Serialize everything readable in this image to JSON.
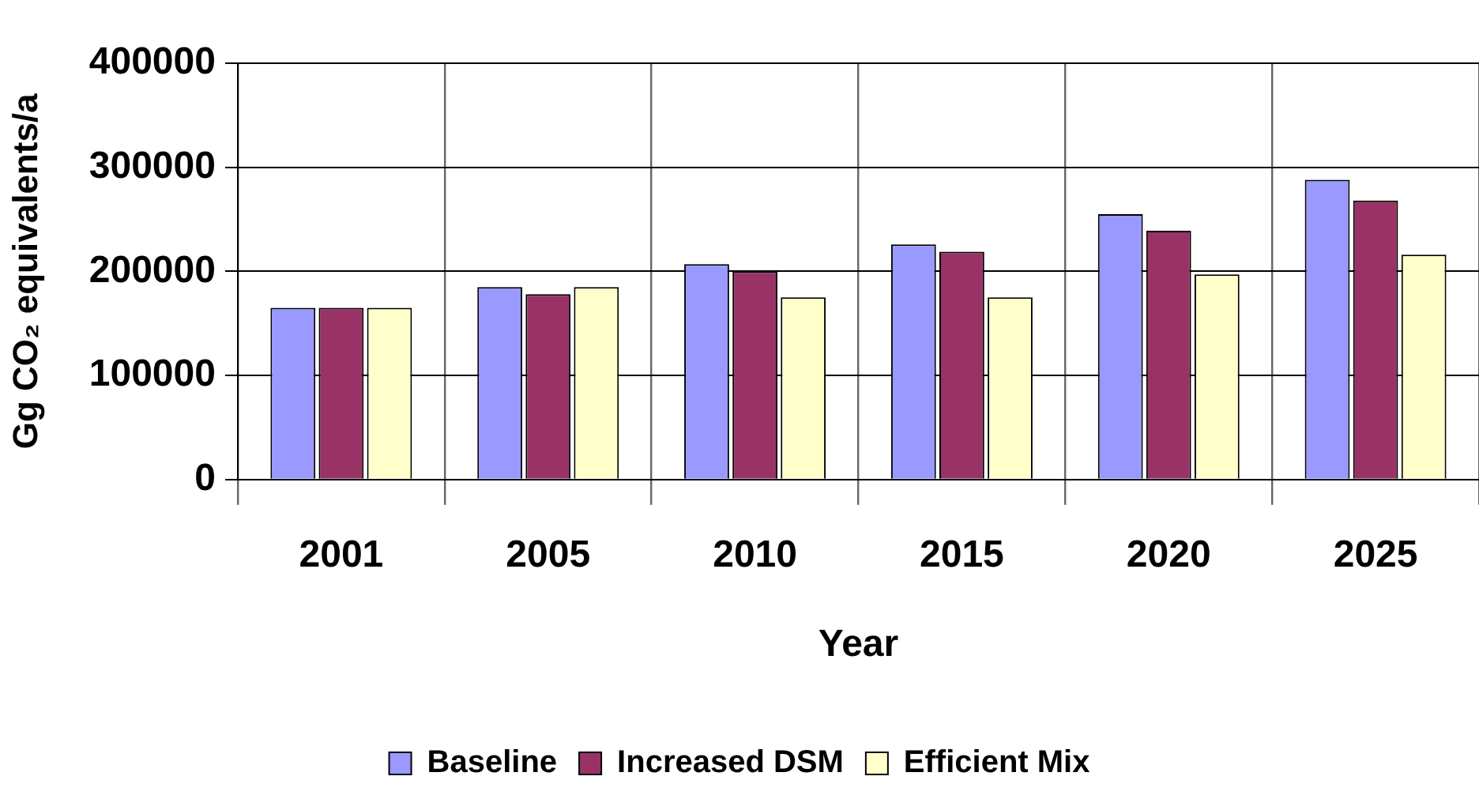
{
  "chart_data": {
    "type": "bar",
    "xlabel": "Year",
    "ylabel": "Gg CO₂ equivalents/a",
    "categories": [
      "2001",
      "2005",
      "2010",
      "2015",
      "2020",
      "2025"
    ],
    "series": [
      {
        "name": "Baseline",
        "color": "#9999ff",
        "values": [
          165000,
          185000,
          207000,
          226000,
          255000,
          288000
        ]
      },
      {
        "name": "Increased DSM",
        "color": "#993366",
        "values": [
          165000,
          178000,
          200000,
          219000,
          239000,
          268000
        ]
      },
      {
        "name": "Efficient Mix",
        "color": "#ffffcc",
        "values": [
          165000,
          185000,
          175000,
          175000,
          197000,
          216000
        ]
      }
    ],
    "ylim": [
      0,
      400000
    ],
    "yticks": [
      0,
      100000,
      200000,
      300000,
      400000
    ],
    "grid": true,
    "legend": "bottom"
  }
}
